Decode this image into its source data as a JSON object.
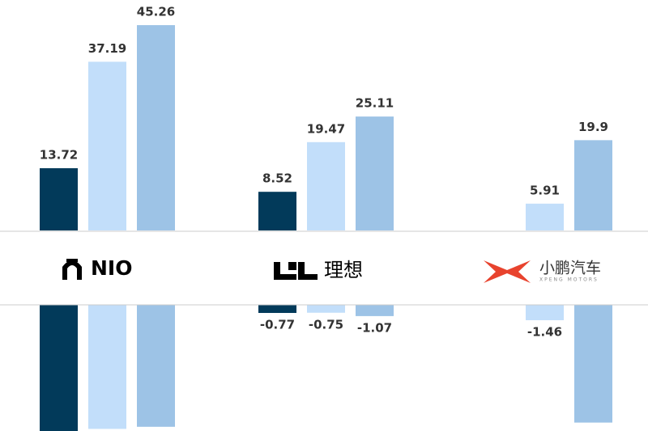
{
  "chart_data": [
    {
      "type": "bar",
      "categories": [
        "NIO",
        "理想",
        "小鹏汽车"
      ],
      "category_sublabels": [
        null,
        null,
        "XPENG MOTORS"
      ],
      "series": [
        {
          "color": "#023a5a",
          "values": [
            13.72,
            8.52,
            null
          ]
        },
        {
          "color": "#c2defa",
          "values": [
            37.19,
            19.47,
            5.91
          ]
        },
        {
          "color": "#9dc3e6",
          "values": [
            45.26,
            25.11,
            19.9
          ]
        }
      ],
      "ylim": [
        0,
        50.8
      ]
    },
    {
      "type": "bar",
      "series": [
        {
          "color": "#023a5a",
          "values": [
            -12.5,
            -0.77,
            null
          ],
          "value_labels": [
            null,
            "-0.77",
            null
          ]
        },
        {
          "color": "#c2defa",
          "values": [
            -11.8,
            -0.75,
            -1.46
          ],
          "value_labels": [
            null,
            "-0.75",
            "-1.46"
          ]
        },
        {
          "color": "#9dc3e6",
          "values": [
            -11.6,
            -1.07,
            -11.2
          ],
          "value_labels": [
            null,
            "-1.07",
            null
          ]
        }
      ],
      "ylim": [
        -12,
        0
      ]
    }
  ]
}
